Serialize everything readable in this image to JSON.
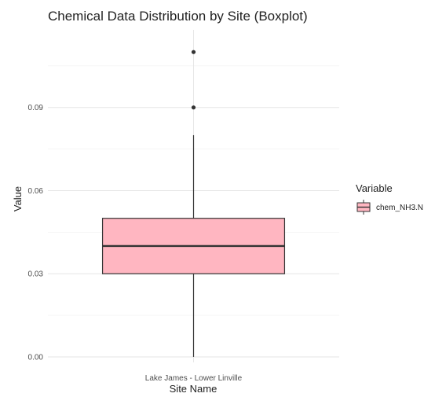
{
  "chart_data": {
    "type": "boxplot",
    "title": "Chemical Data Distribution by Site (Boxplot)",
    "xlabel": "Site Name",
    "ylabel": "Value",
    "ylim": [
      -0.002,
      0.118
    ],
    "y_ticks": [
      0.0,
      0.03,
      0.06,
      0.09
    ],
    "y_tick_labels": [
      "0.00",
      "0.03",
      "0.06",
      "0.09"
    ],
    "categories": [
      "Lake James - Lower Linville"
    ],
    "series": [
      {
        "name": "chem_NH3.N",
        "color": "#FFB6C1",
        "boxes": [
          {
            "category": "Lake James - Lower Linville",
            "min": 0.0,
            "q1": 0.03,
            "median": 0.04,
            "q3": 0.05,
            "max": 0.08,
            "outliers": [
              0.09,
              0.11
            ]
          }
        ]
      }
    ],
    "legend": {
      "title": "Variable",
      "position": "right",
      "items": [
        "chem_NH3.N"
      ]
    },
    "grid": true
  }
}
